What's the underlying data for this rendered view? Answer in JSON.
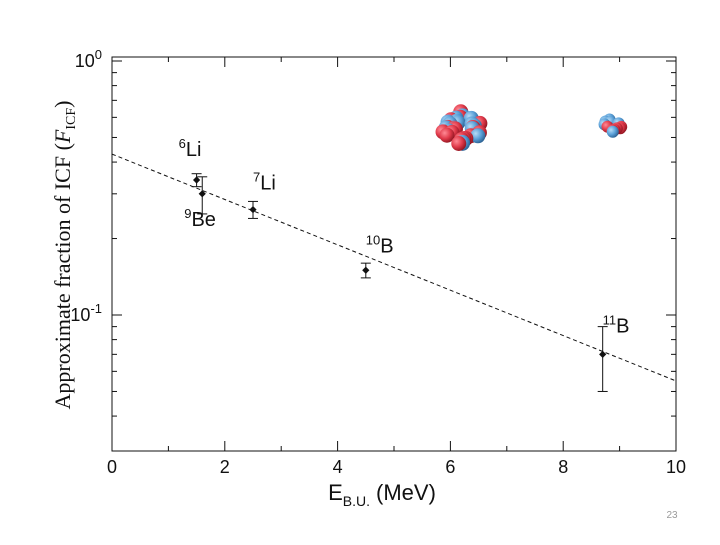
{
  "slide_number": "23",
  "chart_data": {
    "type": "scatter",
    "title": "",
    "xlabel": "E",
    "xlabel_sub": "B.U.",
    "xlabel_unit": "(MeV)",
    "ylabel": "Approximate fraction of ICF (",
    "ylabel_var": "F",
    "ylabel_var_sub": "ICF",
    "ylabel_close": ")",
    "x_ticks": [
      "0",
      "2",
      "4",
      "6",
      "8",
      "10"
    ],
    "y_ticks": [
      {
        "base": "10",
        "exp": "0"
      },
      {
        "base": "10",
        "exp": "-1"
      }
    ],
    "xlim": [
      0,
      10
    ],
    "ylim": [
      0.03,
      1.0
    ],
    "y_scale": "log",
    "grid": false,
    "points": [
      {
        "label_mass": "6",
        "label_el": "Li",
        "x": 1.5,
        "y": 0.34,
        "yerr_low": 0.32,
        "yerr_high": 0.36
      },
      {
        "label_mass": "9",
        "label_el": "Be",
        "x": 1.6,
        "y": 0.3,
        "yerr_low": 0.25,
        "yerr_high": 0.35
      },
      {
        "label_mass": "7",
        "label_el": "Li",
        "x": 2.5,
        "y": 0.26,
        "yerr_low": 0.24,
        "yerr_high": 0.28
      },
      {
        "label_mass": "10",
        "label_el": "B",
        "x": 4.5,
        "y": 0.15,
        "yerr_low": 0.14,
        "yerr_high": 0.16
      },
      {
        "label_mass": "11",
        "label_el": "B",
        "x": 8.7,
        "y": 0.07,
        "yerr_low": 0.05,
        "yerr_high": 0.09
      }
    ],
    "fit_line": {
      "style": "dashed",
      "x": [
        0,
        10
      ],
      "y": [
        0.43,
        0.055
      ]
    },
    "colors": {
      "proton": "#e03a4a",
      "neutron": "#5aa0d8",
      "axis": "#111111"
    }
  }
}
